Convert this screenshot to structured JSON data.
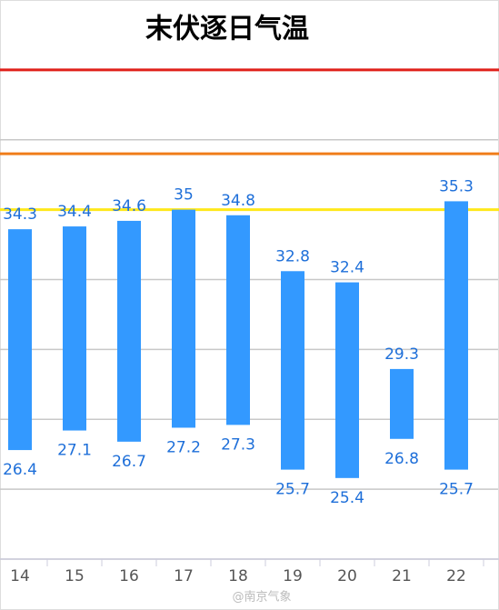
{
  "chart_data": {
    "type": "range_bar",
    "title": "末伏逐日气温",
    "categories": [
      "14",
      "15",
      "16",
      "17",
      "18",
      "19",
      "20",
      "21",
      "22"
    ],
    "low": [
      26.4,
      27.1,
      26.7,
      27.2,
      27.3,
      25.7,
      25.4,
      26.8,
      25.7
    ],
    "high": [
      34.3,
      34.4,
      34.6,
      35,
      34.8,
      32.8,
      32.4,
      29.3,
      35.3
    ],
    "color": "#3399ff",
    "ylim": [
      22.5,
      42.5
    ],
    "yticks": [
      22.5,
      25,
      27.5,
      30,
      32.5,
      35,
      37.5,
      40
    ],
    "grid": true,
    "reference_lines": [
      {
        "value": 35,
        "color": "#ffe81a"
      },
      {
        "value": 37,
        "color": "#f07d1a"
      },
      {
        "value": 40,
        "color": "#e0201a"
      }
    ],
    "watermark": "@南京气象"
  }
}
